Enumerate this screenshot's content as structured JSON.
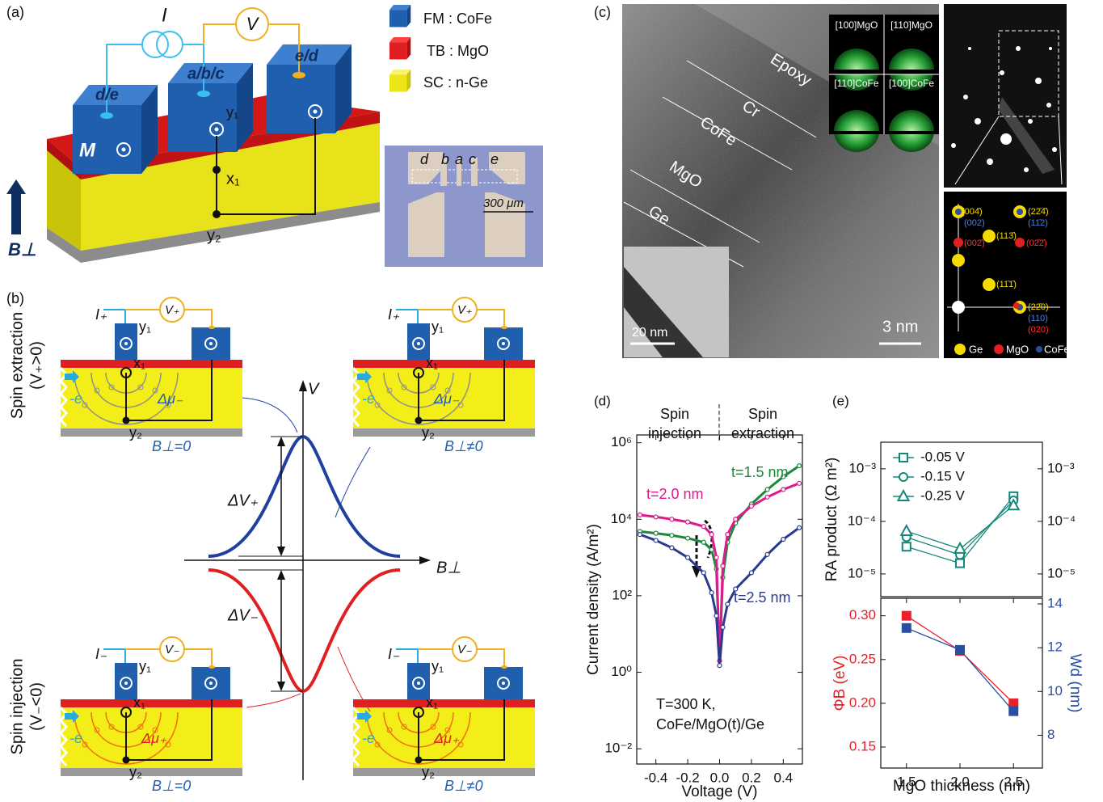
{
  "panel_a": {
    "label": "(a)",
    "current": "I",
    "voltage": "V",
    "contacts": [
      "d/e",
      "a/b/c",
      "e/d"
    ],
    "magnet": "M",
    "points": [
      "y₁",
      "x₁",
      "y₂"
    ],
    "field": "B⊥",
    "legend": [
      "FM : CoFe",
      "TB : MgO",
      "SC : n-Ge"
    ],
    "photo_labels": [
      "d",
      "b",
      "a",
      "c",
      "e"
    ],
    "scale_bar": "300 μm"
  },
  "panel_b": {
    "label": "(b)",
    "extraction": "Spin extraction",
    "extraction_condition": "(V₊>0)",
    "injection": "Spin injection",
    "injection_condition": "(V₋<0)",
    "current_plus": "I₊",
    "voltage_plus": "V₊",
    "current_minus": "I₋",
    "voltage_minus": "V₋",
    "points": [
      "y₁",
      "x₁",
      "y₂"
    ],
    "electron": "-e",
    "dmu_minus": "Δμ₋",
    "dmu_plus": "Δμ₊",
    "field_zero": "B⊥=0",
    "field_nonzero": "B⊥≠0",
    "v_axis": "V",
    "b_axis": "B⊥",
    "dv_plus": "ΔV₊",
    "dv_minus": "ΔV₋"
  },
  "panel_c": {
    "label": "(c)",
    "layers": [
      "Epoxy",
      "Cr",
      "CoFe",
      "MgO",
      "Ge"
    ],
    "rheed": [
      "[100]MgO",
      "[110]MgO",
      "[110]CoFe",
      "[100]CoFe"
    ],
    "scale_inset": "20 nm",
    "scale_main": "3 nm",
    "spot_labels": [
      "(004̄)",
      "(002)",
      "(002̄)",
      "(113̄)",
      "(22̄4̄)",
      "(11̄2)",
      "(02̄2̄)",
      "(11̄1̄)",
      "(22̄0)",
      "(110)",
      "(020)"
    ],
    "legend": [
      "Ge",
      "MgO",
      "CoFe"
    ]
  },
  "chart_data": [
    {
      "type": "scatter",
      "panel_label": "(d)",
      "xlabel": "Voltage (V)",
      "ylabel": "Current density (A/m²)",
      "ylog": true,
      "x": [
        -0.5,
        -0.4,
        -0.3,
        -0.2,
        -0.1,
        -0.05,
        -0.02,
        0,
        0.02,
        0.05,
        0.1,
        0.2,
        0.3,
        0.4,
        0.5
      ],
      "series": [
        {
          "name": "t=1.5 nm",
          "color": "#1a8a3a",
          "marker": "circle",
          "values": [
            4800,
            4300,
            3800,
            3200,
            2500,
            1600,
            500,
            2,
            300,
            2500,
            8000,
            25000,
            60000,
            130000,
            250000
          ]
        },
        {
          "name": "t=2.0 nm",
          "color": "#e0198c",
          "marker": "circle",
          "values": [
            13000,
            11500,
            10000,
            8500,
            6500,
            4000,
            1000,
            2,
            600,
            4000,
            10000,
            22000,
            38000,
            60000,
            87000
          ]
        },
        {
          "name": "t=2.5 nm",
          "color": "#2b3a8f",
          "marker": "circle",
          "values": [
            4000,
            2800,
            1800,
            1000,
            400,
            120,
            30,
            1.5,
            15,
            60,
            150,
            400,
            1200,
            3000,
            6000
          ]
        }
      ],
      "marker_fill": "open",
      "xlim": [
        -0.52,
        0.52
      ],
      "ylim": [
        0.004,
        1600000
      ],
      "xticks": [
        -0.4,
        -0.2,
        {
          "value": 0,
          "label": "0.0"
        },
        0.2,
        0.4
      ],
      "yticks": [
        {
          "value": 0.01,
          "label": "10⁻²"
        },
        {
          "value": 1,
          "label": "10⁰"
        },
        {
          "value": 100,
          "label": "10²"
        },
        {
          "value": 10000,
          "label": "10⁴"
        },
        {
          "value": 1000000,
          "label": "10⁶"
        }
      ],
      "annotations": [
        "Spin",
        "injection",
        "Spin",
        "extraction",
        "T=300 K,",
        "CoFe/MgO(t)/Ge"
      ]
    },
    {
      "type": "scatter",
      "panel_label": "(e)",
      "ylabel": "RA product (Ω m²)",
      "ylog": true,
      "x": [
        1.5,
        2,
        2.5
      ],
      "series": [
        {
          "name": "-0.05 V",
          "color": "#13877a",
          "marker": "square",
          "values": [
            3.3e-05,
            1.6e-05,
            0.0003
          ]
        },
        {
          "name": "-0.15 V",
          "color": "#13877a",
          "marker": "circle",
          "values": [
            5e-05,
            2.3e-05,
            0.00025
          ]
        },
        {
          "name": "-0.25 V",
          "color": "#13877a",
          "marker": "triangle",
          "values": [
            6.5e-05,
            3e-05,
            0.0002
          ]
        }
      ],
      "marker_fill": "open",
      "legend": "top-left",
      "xlim": [
        1.26,
        2.77
      ],
      "ylim": [
        3.7e-06,
        0.0032
      ],
      "yticks": [
        {
          "value": 1e-05,
          "label": "10⁻⁵"
        },
        {
          "value": 0.0001,
          "label": "10⁻⁴"
        },
        {
          "value": 0.001,
          "label": "10⁻³"
        }
      ],
      "y2lim": [
        3.7e-06,
        0.0032
      ],
      "y2ticks": [
        {
          "value": 1e-05,
          "label": "10⁻⁵"
        },
        {
          "value": 0.0001,
          "label": "10⁻⁴"
        },
        {
          "value": 0.001,
          "label": "10⁻³"
        }
      ]
    },
    {
      "type": "scatter",
      "xlabel": "MgO thickness (nm)",
      "ylabel": "ΦB (eV)",
      "y2label": "Wd (nm)",
      "x": [
        1.5,
        2,
        2.5
      ],
      "series": [
        {
          "color": "#e8202a",
          "marker": "square",
          "values": [
            0.3,
            0.26,
            0.2
          ]
        },
        {
          "color": "#2a4fa0",
          "marker": "square",
          "axis": "y2",
          "values": [
            12.9,
            11.9,
            9.1
          ]
        }
      ],
      "marker_fill": "filled",
      "ylabel_color": "#e8202a",
      "y2label_color": "#2a4fa0",
      "xlim": [
        1.26,
        2.77
      ],
      "ylim": [
        0.126,
        0.32
      ],
      "y2lim": [
        6.5,
        14.26
      ],
      "xticks": [
        1.5,
        {
          "value": 2,
          "label": "2.0"
        },
        2.5
      ],
      "yticks": [
        0.15,
        {
          "value": 0.2,
          "label": "0.20"
        },
        0.25,
        {
          "value": 0.3,
          "label": "0.30"
        }
      ],
      "y2ticks": [
        8,
        10,
        12,
        14
      ]
    }
  ]
}
